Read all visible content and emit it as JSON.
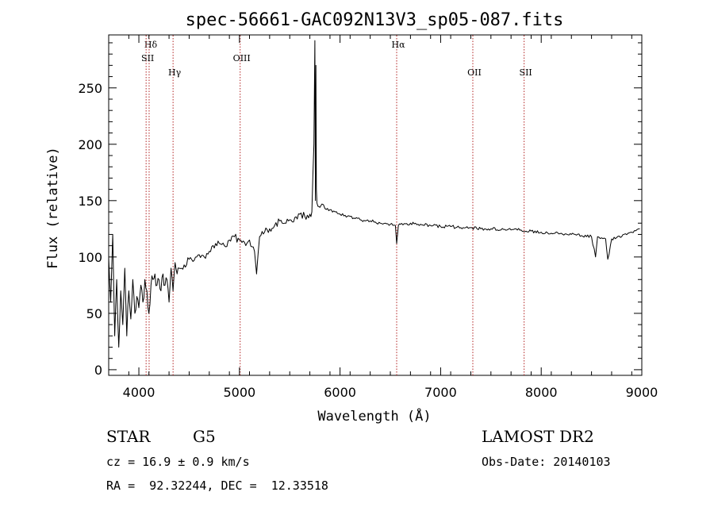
{
  "chart_data": {
    "type": "line",
    "title": "spec-56661-GAC092N13V3_sp05-087.fits",
    "xlabel": "Wavelength (Å)",
    "ylabel": "Flux (relative)",
    "xlim": [
      3700,
      9000
    ],
    "ylim": [
      -5,
      297
    ],
    "xticks": [
      4000,
      5000,
      6000,
      7000,
      8000,
      9000
    ],
    "yticks": [
      0,
      50,
      100,
      150,
      200,
      250
    ],
    "grid": false,
    "line_color": "#000000",
    "marker_color": "#b22222",
    "spectral_lines": [
      {
        "label": "Hδ",
        "wavelength": 4102,
        "label_row": 1
      },
      {
        "label": "SII",
        "wavelength": 4072,
        "label_row": 2
      },
      {
        "label": "Hγ",
        "wavelength": 4340,
        "label_row": 3
      },
      {
        "label": "OIII",
        "wavelength": 5007,
        "label_row": 2
      },
      {
        "label": "Hα",
        "wavelength": 6563,
        "label_row": 1
      },
      {
        "label": "OII",
        "wavelength": 7320,
        "label_row": 3
      },
      {
        "label": "SII",
        "wavelength": 7830,
        "label_row": 3
      }
    ],
    "series": [
      {
        "x": [
          3700,
          3720,
          3740,
          3760,
          3780,
          3800,
          3820,
          3840,
          3860,
          3880,
          3900,
          3920,
          3940,
          3960,
          3980,
          4000,
          4020,
          4040,
          4060,
          4080,
          4100,
          4120,
          4140,
          4160,
          4180,
          4200,
          4220,
          4240,
          4260,
          4280,
          4300,
          4320,
          4340,
          4360,
          4380,
          4400,
          4450,
          4500,
          4550,
          4600,
          4650,
          4700,
          4750,
          4800,
          4850,
          4900,
          4950,
          5000,
          5050,
          5100,
          5150,
          5170,
          5200,
          5250,
          5300,
          5350,
          5400,
          5450,
          5500,
          5550,
          5600,
          5650,
          5700,
          5720,
          5740,
          5750,
          5755,
          5760,
          5765,
          5770,
          5780,
          5800,
          5820,
          5850,
          5900,
          5950,
          6000,
          6050,
          6100,
          6150,
          6200,
          6250,
          6300,
          6350,
          6400,
          6450,
          6500,
          6550,
          6563,
          6580,
          6600,
          6700,
          6800,
          6900,
          7000,
          7100,
          7200,
          7300,
          7400,
          7500,
          7600,
          7700,
          7800,
          7900,
          8000,
          8100,
          8200,
          8300,
          8400,
          8500,
          8540,
          8560,
          8600,
          8640,
          8662,
          8700,
          8800,
          8900,
          8980
        ],
        "y": [
          100,
          60,
          120,
          30,
          80,
          20,
          70,
          40,
          90,
          30,
          70,
          45,
          80,
          50,
          65,
          55,
          75,
          60,
          80,
          70,
          50,
          75,
          80,
          85,
          75,
          80,
          70,
          85,
          75,
          80,
          60,
          90,
          70,
          95,
          85,
          90,
          93,
          98,
          97,
          102,
          100,
          105,
          108,
          112,
          110,
          115,
          118,
          115,
          113,
          115,
          105,
          85,
          118,
          122,
          125,
          128,
          132,
          130,
          133,
          135,
          138,
          136,
          138,
          140,
          200,
          292,
          150,
          270,
          160,
          148,
          145,
          144,
          147,
          143,
          142,
          140,
          138,
          137,
          136,
          134,
          133,
          132,
          132,
          131,
          130,
          130,
          129,
          128,
          112,
          128,
          129,
          130,
          129,
          128,
          127,
          127,
          126,
          126,
          125,
          125,
          124,
          124,
          124,
          123,
          122,
          121,
          121,
          120,
          119,
          118,
          100,
          118,
          117,
          116,
          98,
          116,
          118,
          122,
          125
        ]
      }
    ]
  },
  "info": {
    "object_class": "STAR",
    "subclass": "G5",
    "redshift": "cz = 16.9 ± 0.9 km/s",
    "coords": "RA =  92.32244, DEC =  12.33518",
    "survey": "LAMOST DR2",
    "obs_date": "Obs-Date: 20140103"
  }
}
